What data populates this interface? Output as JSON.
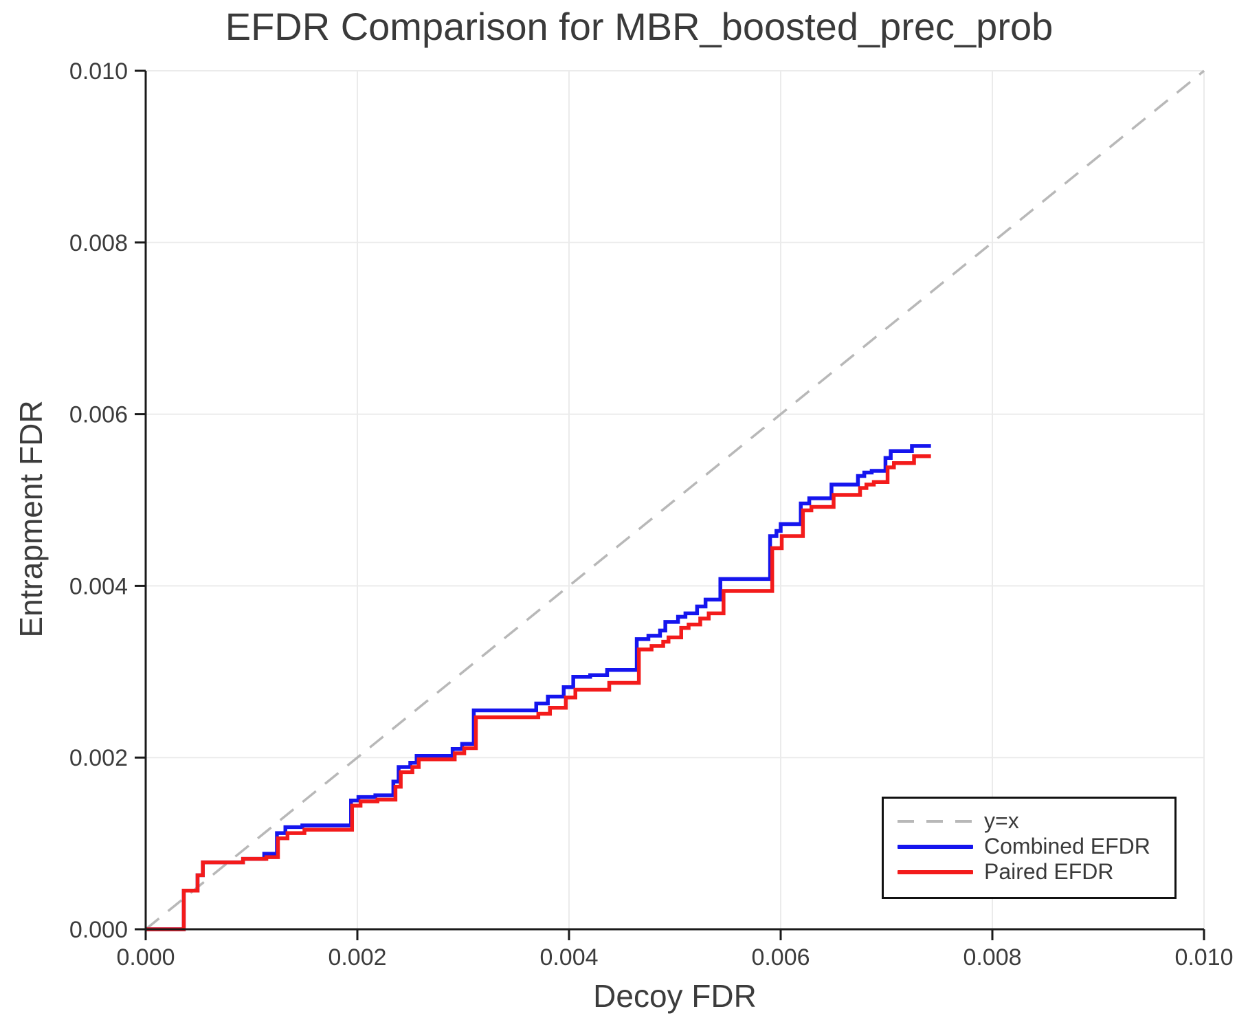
{
  "figure": {
    "title": "EFDR Comparison for MBR_boosted_prec_prob",
    "x_axis_label": "Decoy FDR",
    "y_axis_label": "Entrapment FDR"
  },
  "colors": {
    "combined_line": "#1515ee",
    "paired_line": "#f31b1b",
    "reference_line": "#b8b8b8",
    "grid": "#ebebeb",
    "axis": "#1a1a1a",
    "text": "#3c3c3c"
  },
  "chart_data": {
    "type": "line",
    "title": "EFDR Comparison for MBR_boosted_prec_prob",
    "xlabel": "Decoy FDR",
    "ylabel": "Entrapment FDR",
    "xlim": [
      0.0,
      0.01
    ],
    "ylim": [
      0.0,
      0.01
    ],
    "grid": true,
    "x_ticks": [
      0.0,
      0.002,
      0.004,
      0.006,
      0.008,
      0.01
    ],
    "x_tick_labels": [
      "0.000",
      "0.002",
      "0.004",
      "0.006",
      "0.008",
      "0.010"
    ],
    "y_ticks": [
      0.0,
      0.002,
      0.004,
      0.006,
      0.008,
      0.01
    ],
    "y_tick_labels": [
      "0.000",
      "0.002",
      "0.004",
      "0.006",
      "0.008",
      "0.010"
    ],
    "legend": {
      "position": "lower right",
      "entries": [
        {
          "label": "y=x",
          "style": "dashed",
          "color": "#b8b8b8"
        },
        {
          "label": "Combined EFDR",
          "style": "solid",
          "color": "#1515ee"
        },
        {
          "label": "Paired EFDR",
          "style": "solid",
          "color": "#f31b1b"
        }
      ]
    },
    "reference_line": {
      "label": "y=x",
      "from": [
        0.0,
        0.0
      ],
      "to": [
        0.01,
        0.01
      ],
      "style": "dashed",
      "color": "#b8b8b8"
    },
    "series": [
      {
        "name": "Combined EFDR",
        "color": "#1515ee",
        "draw_style": "step-post",
        "start": [
          0.0,
          0.0
        ],
        "x_end": 0.00742,
        "steps": [
          [
            0.00036,
            0.00045
          ],
          [
            0.00049,
            0.00063
          ],
          [
            0.00054,
            0.00078
          ],
          [
            0.00092,
            0.00082
          ],
          [
            0.00112,
            0.00088
          ],
          [
            0.00124,
            0.00112
          ],
          [
            0.00132,
            0.00119
          ],
          [
            0.00148,
            0.00121
          ],
          [
            0.00194,
            0.0015
          ],
          [
            0.00201,
            0.00154
          ],
          [
            0.00217,
            0.00156
          ],
          [
            0.00234,
            0.00172
          ],
          [
            0.00239,
            0.00189
          ],
          [
            0.0025,
            0.00194
          ],
          [
            0.00256,
            0.00202
          ],
          [
            0.0029,
            0.0021
          ],
          [
            0.00299,
            0.00216
          ],
          [
            0.0031,
            0.00255
          ],
          [
            0.00369,
            0.00263
          ],
          [
            0.0038,
            0.00271
          ],
          [
            0.00395,
            0.00282
          ],
          [
            0.00404,
            0.00294
          ],
          [
            0.0042,
            0.00296
          ],
          [
            0.00436,
            0.00302
          ],
          [
            0.00464,
            0.00338
          ],
          [
            0.00475,
            0.00342
          ],
          [
            0.00486,
            0.00348
          ],
          [
            0.00491,
            0.00358
          ],
          [
            0.00503,
            0.00364
          ],
          [
            0.0051,
            0.00368
          ],
          [
            0.00521,
            0.00376
          ],
          [
            0.00529,
            0.00384
          ],
          [
            0.00543,
            0.00408
          ],
          [
            0.0059,
            0.00458
          ],
          [
            0.00596,
            0.00464
          ],
          [
            0.006,
            0.00472
          ],
          [
            0.00619,
            0.00496
          ],
          [
            0.00627,
            0.00502
          ],
          [
            0.00648,
            0.00518
          ],
          [
            0.00673,
            0.00528
          ],
          [
            0.00679,
            0.00532
          ],
          [
            0.00686,
            0.00534
          ],
          [
            0.00699,
            0.00549
          ],
          [
            0.00704,
            0.00557
          ],
          [
            0.00724,
            0.00563
          ]
        ]
      },
      {
        "name": "Paired EFDR",
        "color": "#f31b1b",
        "draw_style": "step-post",
        "start": [
          0.0,
          0.0
        ],
        "x_end": 0.00742,
        "steps": [
          [
            0.00036,
            0.00045
          ],
          [
            0.00049,
            0.00063
          ],
          [
            0.00054,
            0.00078
          ],
          [
            0.00092,
            0.00082
          ],
          [
            0.00114,
            0.00084
          ],
          [
            0.00125,
            0.00106
          ],
          [
            0.00134,
            0.00112
          ],
          [
            0.0015,
            0.00116
          ],
          [
            0.00195,
            0.00144
          ],
          [
            0.00203,
            0.00149
          ],
          [
            0.00219,
            0.00151
          ],
          [
            0.00236,
            0.00166
          ],
          [
            0.00241,
            0.00183
          ],
          [
            0.00252,
            0.00189
          ],
          [
            0.00258,
            0.00198
          ],
          [
            0.00292,
            0.00205
          ],
          [
            0.00301,
            0.00211
          ],
          [
            0.00312,
            0.00247
          ],
          [
            0.00371,
            0.00251
          ],
          [
            0.00382,
            0.00258
          ],
          [
            0.00397,
            0.0027
          ],
          [
            0.00406,
            0.00279
          ],
          [
            0.00438,
            0.00287
          ],
          [
            0.00466,
            0.00326
          ],
          [
            0.00478,
            0.0033
          ],
          [
            0.00489,
            0.00335
          ],
          [
            0.00494,
            0.0034
          ],
          [
            0.00506,
            0.00351
          ],
          [
            0.00513,
            0.00355
          ],
          [
            0.00524,
            0.00362
          ],
          [
            0.00532,
            0.00368
          ],
          [
            0.00546,
            0.00394
          ],
          [
            0.00592,
            0.00444
          ],
          [
            0.00601,
            0.00458
          ],
          [
            0.00621,
            0.00488
          ],
          [
            0.00629,
            0.00492
          ],
          [
            0.0065,
            0.00506
          ],
          [
            0.00675,
            0.00514
          ],
          [
            0.00681,
            0.00518
          ],
          [
            0.00688,
            0.00521
          ],
          [
            0.00701,
            0.00538
          ],
          [
            0.00707,
            0.00543
          ],
          [
            0.00726,
            0.00551
          ]
        ]
      }
    ]
  }
}
